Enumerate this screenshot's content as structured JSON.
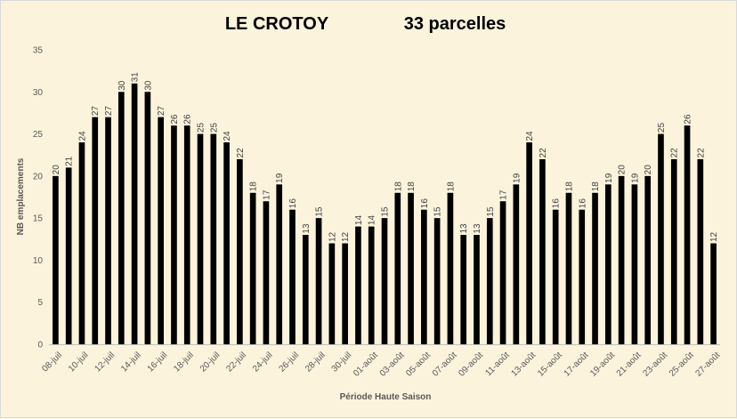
{
  "chart_data": {
    "type": "bar",
    "title_left": "LE CROTOY",
    "title_right": "33 parcelles",
    "xlabel": "Période Haute Saison",
    "ylabel": "NB emplacements",
    "ylim": [
      0,
      35
    ],
    "yticks": [
      0,
      5,
      10,
      15,
      20,
      25,
      30,
      35
    ],
    "grid": false,
    "bar_color": "#000000",
    "categories": [
      "08-juil",
      "09-juil",
      "10-juil",
      "11-juil",
      "12-juil",
      "13-juil",
      "14-juil",
      "15-juil",
      "16-juil",
      "17-juil",
      "18-juil",
      "19-juil",
      "20-juil",
      "21-juil",
      "22-juil",
      "23-juil",
      "24-juil",
      "25-juil",
      "26-juil",
      "27-juil",
      "28-juil",
      "29-juil",
      "30-juil",
      "31-juil",
      "01-août",
      "02-août",
      "03-août",
      "04-août",
      "05-août",
      "06-août",
      "07-août",
      "08-août",
      "09-août",
      "10-août",
      "11-août",
      "12-août",
      "13-août",
      "14-août",
      "15-août",
      "16-août",
      "17-août",
      "18-août",
      "19-août",
      "20-août",
      "21-août",
      "22-août",
      "23-août",
      "24-août",
      "25-août",
      "26-août",
      "27-août"
    ],
    "shown_tick_labels": [
      "08-juil",
      "10-juil",
      "12-juil",
      "14-juil",
      "16-juil",
      "18-juil",
      "20-juil",
      "22-juil",
      "24-juil",
      "26-juil",
      "28-juil",
      "30-juil",
      "01-août",
      "03-août",
      "05-août",
      "07-août",
      "09-août",
      "11-août",
      "13-août",
      "15-août",
      "17-août",
      "19-août",
      "21-août",
      "23-août",
      "25-août",
      "27-août"
    ],
    "values": [
      20,
      21,
      24,
      27,
      27,
      30,
      31,
      30,
      27,
      26,
      26,
      25,
      25,
      24,
      22,
      18,
      17,
      19,
      16,
      13,
      15,
      12,
      12,
      14,
      14,
      15,
      18,
      18,
      16,
      15,
      18,
      13,
      13,
      15,
      17,
      19,
      24,
      22,
      16,
      18,
      16,
      18,
      19,
      20,
      19,
      20,
      25,
      22,
      26,
      22,
      12
    ]
  }
}
